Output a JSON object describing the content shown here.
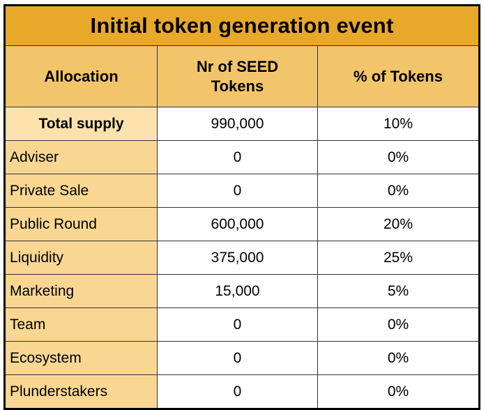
{
  "title": "Initial token generation event",
  "headers": {
    "allocation": "Allocation",
    "seed_tokens": "Nr of SEED Tokens",
    "percent": "% of Tokens"
  },
  "rows": [
    {
      "allocation": "Total supply",
      "seed_tokens": "990,000",
      "percent": "10%"
    },
    {
      "allocation": "Adviser",
      "seed_tokens": "0",
      "percent": "0%"
    },
    {
      "allocation": "Private Sale",
      "seed_tokens": "0",
      "percent": "0%"
    },
    {
      "allocation": "Public Round",
      "seed_tokens": "600,000",
      "percent": "20%"
    },
    {
      "allocation": "Liquidity",
      "seed_tokens": "375,000",
      "percent": "25%"
    },
    {
      "allocation": "Marketing",
      "seed_tokens": "15,000",
      "percent": "5%"
    },
    {
      "allocation": "Team",
      "seed_tokens": "0",
      "percent": "0%"
    },
    {
      "allocation": "Ecosystem",
      "seed_tokens": "0",
      "percent": "0%"
    },
    {
      "allocation": "Plunderstakers",
      "seed_tokens": "0",
      "percent": "0%"
    }
  ],
  "colors": {
    "title_bg": "#e8a92b",
    "header_bg": "#f3c56a",
    "label_bg": "#f9d793",
    "total_label_bg": "#fbe2ad",
    "cell_bg": "#ffffff"
  }
}
